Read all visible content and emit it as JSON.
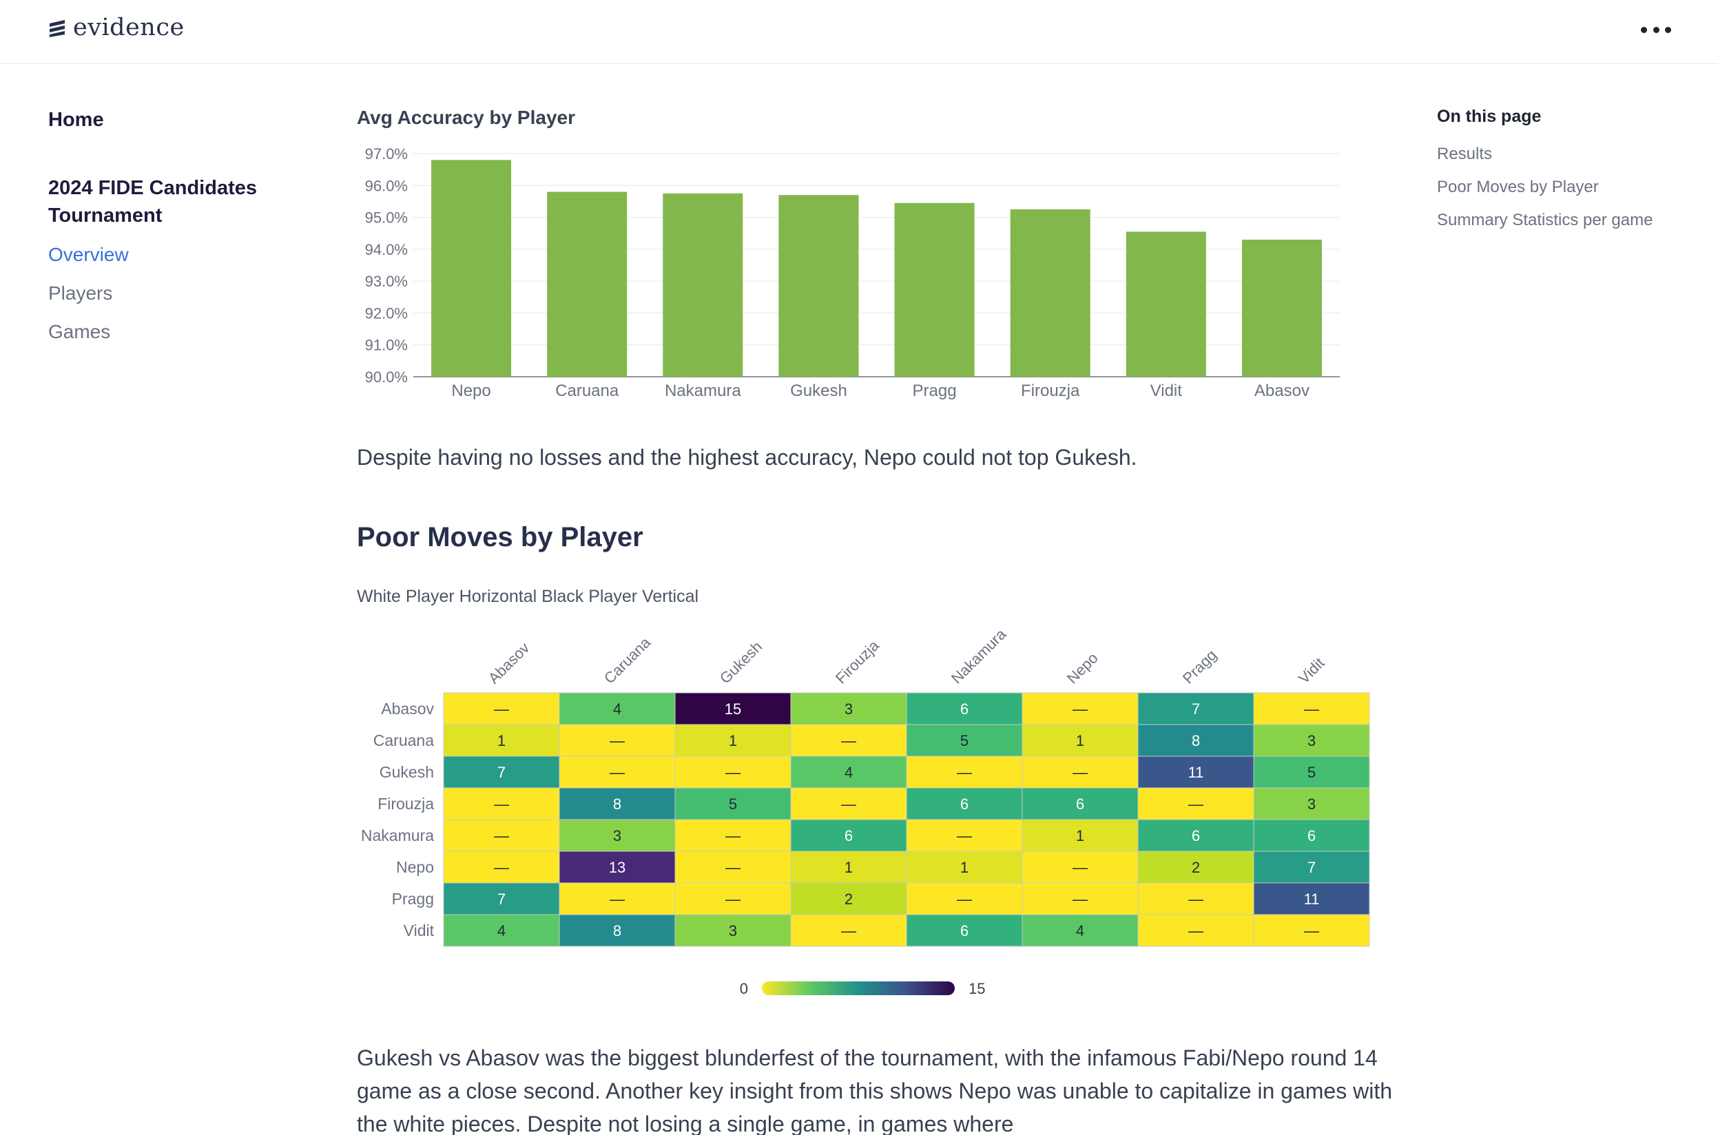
{
  "app": {
    "logo_text": "evidence"
  },
  "header": {
    "menu_icon": "more-horizontal-icon"
  },
  "sidebar": {
    "home": "Home",
    "section": "2024 FIDE Candidates Tournament",
    "items": [
      {
        "label": "Overview",
        "active": true
      },
      {
        "label": "Players",
        "active": false
      },
      {
        "label": "Games",
        "active": false
      }
    ]
  },
  "toc": {
    "title": "On this page",
    "items": [
      "Results",
      "Poor Moves by Player",
      "Summary Statistics per game"
    ]
  },
  "content": {
    "bar_title": "Avg Accuracy by Player",
    "para1": "Despite having no losses and the highest accuracy, Nepo could not top Gukesh.",
    "h2": "Poor Moves by Player",
    "heat_title": "White Player Horizontal Black Player Vertical",
    "para2": "Gukesh vs Abasov was the biggest blunderfest of the tournament, with the infamous Fabi/Nepo round 14 game as a close second. Another key insight from this shows Nepo was unable to capitalize in games with the white pieces. Despite not losing a single game, in games where"
  },
  "colors": {
    "bar": "#82b74b",
    "link": "#3b6fd8"
  },
  "chart_data": [
    {
      "type": "bar",
      "title": "Avg Accuracy by Player",
      "categories": [
        "Nepo",
        "Caruana",
        "Nakamura",
        "Gukesh",
        "Pragg",
        "Firouzja",
        "Vidit",
        "Abasov"
      ],
      "values": [
        96.8,
        95.8,
        95.75,
        95.7,
        95.45,
        95.25,
        94.55,
        94.3
      ],
      "ylim": [
        90,
        97
      ],
      "yticks": [
        "90.0%",
        "91.0%",
        "92.0%",
        "93.0%",
        "94.0%",
        "95.0%",
        "96.0%",
        "97.0%"
      ],
      "grid": true
    },
    {
      "type": "heatmap",
      "title": "White Player Horizontal Black Player Vertical",
      "x": [
        "Abasov",
        "Caruana",
        "Gukesh",
        "Firouzja",
        "Nakamura",
        "Nepo",
        "Pragg",
        "Vidit"
      ],
      "y": [
        "Abasov",
        "Caruana",
        "Gukesh",
        "Firouzja",
        "Nakamura",
        "Nepo",
        "Pragg",
        "Vidit"
      ],
      "values": [
        [
          null,
          4,
          15,
          3,
          6,
          null,
          7,
          null
        ],
        [
          1,
          null,
          1,
          null,
          5,
          1,
          8,
          3
        ],
        [
          7,
          null,
          null,
          4,
          null,
          null,
          11,
          5
        ],
        [
          null,
          8,
          5,
          null,
          6,
          6,
          null,
          3
        ],
        [
          null,
          3,
          null,
          6,
          null,
          1,
          6,
          6
        ],
        [
          null,
          13,
          null,
          1,
          1,
          null,
          2,
          7
        ],
        [
          7,
          null,
          null,
          2,
          null,
          null,
          null,
          11
        ],
        [
          4,
          8,
          3,
          null,
          6,
          4,
          null,
          null
        ]
      ],
      "empty_label": "—",
      "scale_min": "0",
      "scale_max": "15"
    }
  ]
}
